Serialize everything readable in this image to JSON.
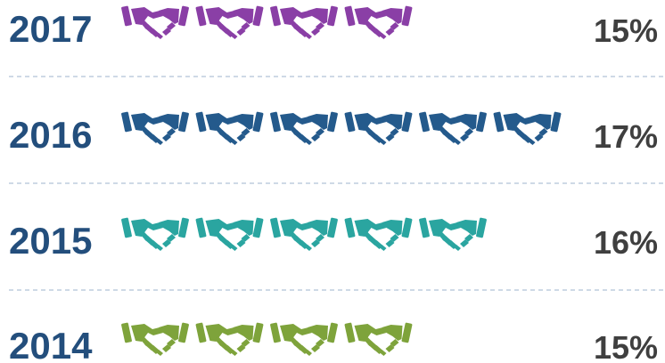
{
  "chart_data": {
    "type": "pictograph",
    "icon": "handshake-icon",
    "rows": [
      {
        "year": "2017",
        "label": "15%",
        "icons": 4,
        "color": "#8a3fa6"
      },
      {
        "year": "2016",
        "label": "17%",
        "icons": 6,
        "color": "#245a8c"
      },
      {
        "year": "2015",
        "label": "16%",
        "icons": 5,
        "color": "#2aa5a0"
      },
      {
        "year": "2014",
        "label": "15%",
        "icons": 4,
        "color": "#7ea33b"
      }
    ]
  }
}
